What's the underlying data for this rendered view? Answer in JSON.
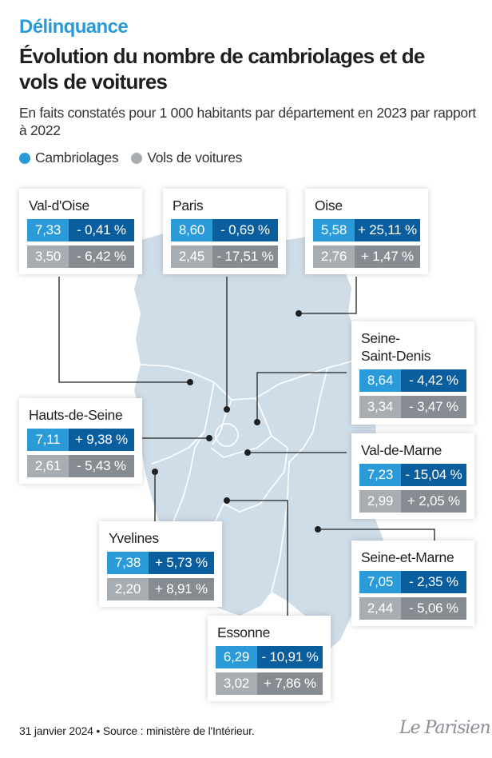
{
  "header": {
    "kicker": "Délinquance",
    "title": "Évolution du nombre de cambriolages et de vols de voitures",
    "subtitle": "En faits constatés pour 1 000 habitants par département en 2023 par rapport à 2022"
  },
  "legend": {
    "burglary_label": "Cambriolages",
    "car_theft_label": "Vols de voitures",
    "burglary_color": "#2a9bd8",
    "car_theft_color": "#a8adb2"
  },
  "departments": [
    {
      "name": "Val-d'Oise",
      "burg_val": "7,33",
      "burg_chg": "- 0,41 %",
      "car_val": "3,50",
      "car_chg": "- 6,42 %"
    },
    {
      "name": "Paris",
      "burg_val": "8,60",
      "burg_chg": "- 0,69 %",
      "car_val": "2,45",
      "car_chg": "- 17,51 %"
    },
    {
      "name": "Oise",
      "burg_val": "5,58",
      "burg_chg": "+ 25,11 %",
      "car_val": "2,76",
      "car_chg": "+ 1,47 %"
    },
    {
      "name": "Seine-\nSaint-Denis",
      "burg_val": "8,64",
      "burg_chg": "- 4,42 %",
      "car_val": "3,34",
      "car_chg": "- 3,47 %"
    },
    {
      "name": "Hauts-de-Seine",
      "burg_val": "7,11",
      "burg_chg": "+ 9,38 %",
      "car_val": "2,61",
      "car_chg": "- 5,43 %"
    },
    {
      "name": "Val-de-Marne",
      "burg_val": "7,23",
      "burg_chg": "- 15,04 %",
      "car_val": "2,99",
      "car_chg": "+ 2,05 %"
    },
    {
      "name": "Yvelines",
      "burg_val": "7,38",
      "burg_chg": "+ 5,73 %",
      "car_val": "2,20",
      "car_chg": "+ 8,91 %"
    },
    {
      "name": "Seine-et-Marne",
      "burg_val": "7,05",
      "burg_chg": "- 2,35 %",
      "car_val": "2,44",
      "car_chg": "- 5,06 %"
    },
    {
      "name": "Essonne",
      "burg_val": "6,29",
      "burg_chg": "- 10,91 %",
      "car_val": "3,02",
      "car_chg": "+ 7,86 %"
    }
  ],
  "footer": {
    "source": "31 janvier 2024 • Source : ministère de l'Intérieur.",
    "logo": "Le Parisien"
  },
  "map_colors": {
    "land": "#cfdde9",
    "border": "#ffffff",
    "leader": "#1f1f1f"
  }
}
